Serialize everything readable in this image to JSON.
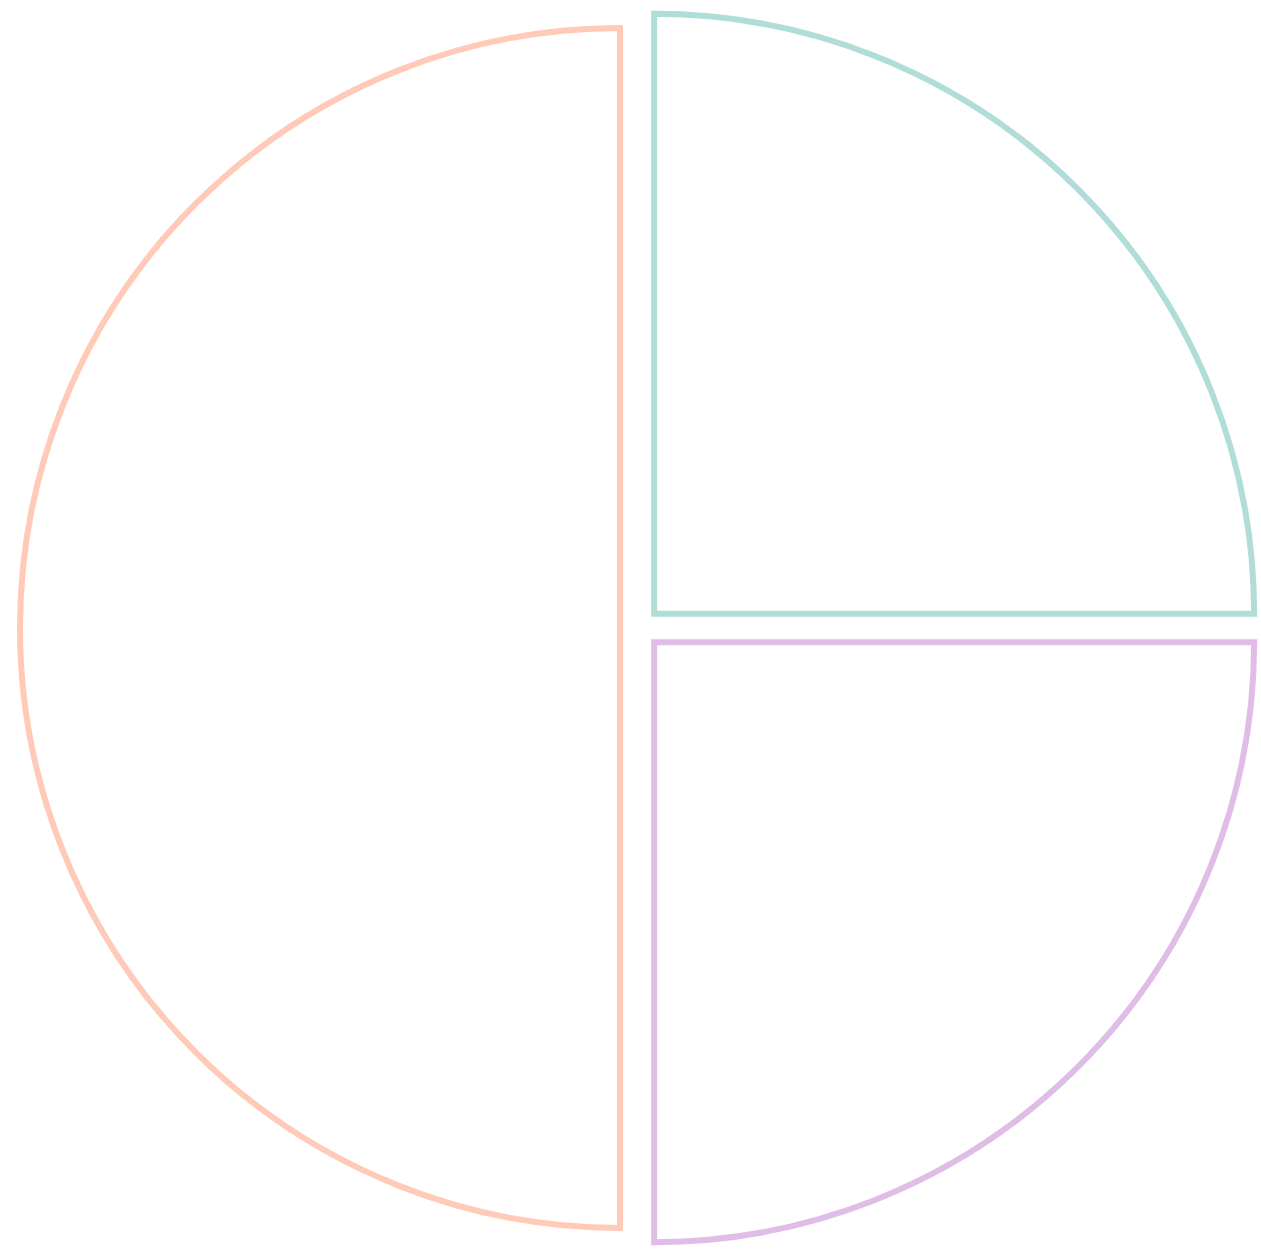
{
  "chart_data": {
    "type": "pie",
    "categories": [
      null,
      null,
      null
    ],
    "values": [
      25,
      25,
      50
    ],
    "colors": [
      "#b0ddd8",
      "#e0bde6",
      "#ffcbb8"
    ]
  }
}
